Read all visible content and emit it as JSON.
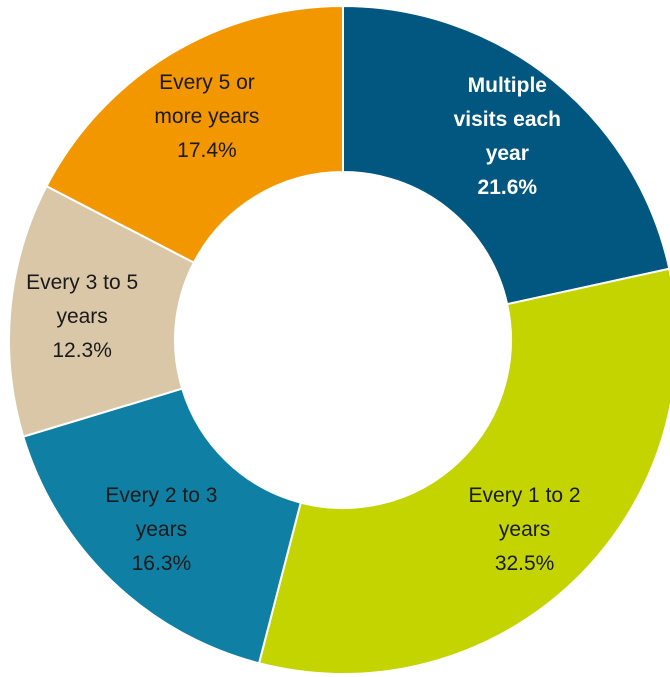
{
  "chart_data": {
    "type": "pie",
    "style": "donut",
    "title": "",
    "slices": [
      {
        "label_lines": [
          "Multiple",
          "visits each",
          "year"
        ],
        "label": "Multiple visits each year",
        "value": 21.6,
        "value_label": "21.6%",
        "color": "#01577f",
        "text_color": "#ffffff",
        "bold": true
      },
      {
        "label_lines": [
          "Every 1 to 2",
          "years"
        ],
        "label": "Every 1 to 2 years",
        "value": 32.5,
        "value_label": "32.5%",
        "color": "#c3d400",
        "text_color": "#1a1a1a",
        "bold": false
      },
      {
        "label_lines": [
          "Every 2 to 3",
          "years"
        ],
        "label": "Every 2 to 3 years",
        "value": 16.3,
        "value_label": "16.3%",
        "color": "#0f7fa3",
        "text_color": "#1a1a1a",
        "bold": false
      },
      {
        "label_lines": [
          "Every 3 to 5",
          "years"
        ],
        "label": "Every 3 to 5 years",
        "value": 12.3,
        "value_label": "12.3%",
        "color": "#d9c7a8",
        "text_color": "#1a1a1a",
        "bold": false
      },
      {
        "label_lines": [
          "Every 5 or",
          "more years"
        ],
        "label": "Every 5 or more years",
        "value": 17.4,
        "value_label": "17.4%",
        "color": "#f39700",
        "text_color": "#1a1a1a",
        "bold": false
      }
    ],
    "start_angle": "12 o'clock",
    "direction": "clockwise",
    "legend": "none"
  }
}
